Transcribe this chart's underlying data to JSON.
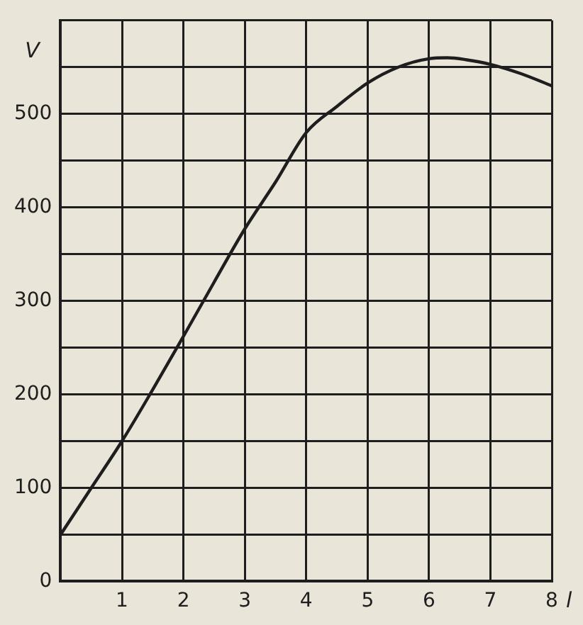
{
  "chart_data": {
    "type": "line",
    "xlabel": "l",
    "ylabel": "V",
    "x": [
      0,
      0.5,
      1,
      1.5,
      2,
      2.5,
      3,
      3.5,
      4,
      4.5,
      5,
      5.5,
      6,
      6.3,
      6.6,
      7,
      7.5,
      8
    ],
    "series": [
      {
        "color": "#1e1e1e",
        "values": [
          50,
          100,
          150,
          205,
          262,
          320,
          377,
          427,
          480,
          508,
          533,
          550,
          559,
          560,
          558,
          553,
          543,
          530
        ]
      }
    ],
    "xlim": [
      0,
      8
    ],
    "ylim": [
      0,
      600
    ],
    "xticks": [
      {
        "value": 0,
        "label": null
      },
      1,
      2,
      3,
      4,
      5,
      6,
      7,
      8
    ],
    "yticks": [
      0,
      {
        "value": 50,
        "label": null
      },
      100,
      {
        "value": 150,
        "label": null
      },
      200,
      {
        "value": 250,
        "label": null
      },
      300,
      {
        "value": 350,
        "label": null
      },
      400,
      {
        "value": 450,
        "label": null
      },
      500,
      {
        "value": 550,
        "label": null
      },
      {
        "value": 600,
        "label": null
      }
    ],
    "grid": true,
    "legend": false,
    "marker": "none",
    "line_style": "solid"
  }
}
